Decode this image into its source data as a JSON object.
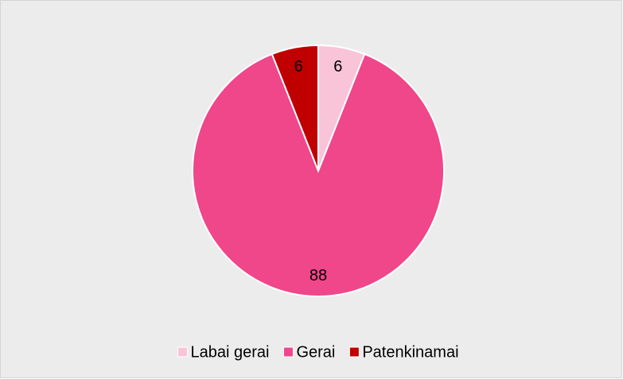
{
  "chart_data": {
    "type": "pie",
    "categories": [
      "Labai gerai",
      "Gerai",
      "Patenkinamai"
    ],
    "values": [
      6,
      88,
      6
    ],
    "colors": [
      "#f9c4d8",
      "#f0468a",
      "#c00000"
    ],
    "legend": "bottom"
  }
}
